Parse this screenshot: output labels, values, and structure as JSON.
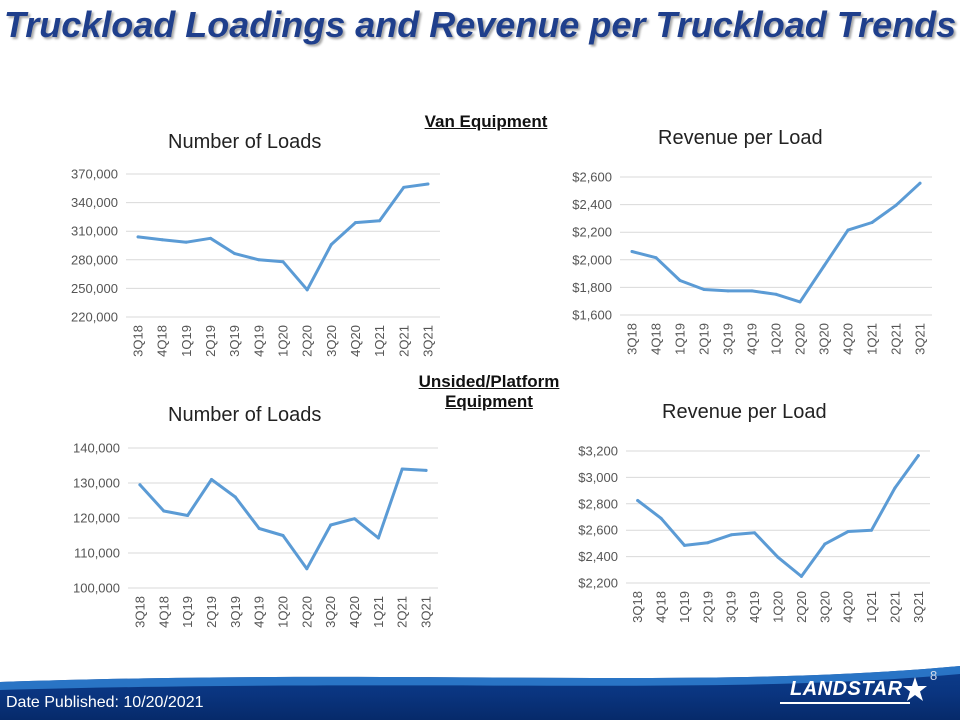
{
  "slide": {
    "title": "Truckload Loadings and Revenue per Truckload Trends",
    "section_van": "Van Equipment",
    "section_unsided": "Unsided/Platform Equipment",
    "footer_date": "Date Published:  10/20/2021",
    "logo": "LANDSTAR",
    "page_number": "8"
  },
  "colors": {
    "title": "#1f3f8c",
    "line": "#5b9bd5",
    "grid": "#d9d9d9",
    "footer": "#0a3580"
  },
  "chart_data": [
    {
      "type": "line",
      "title": "Number of Loads",
      "categories": [
        "3Q18",
        "4Q18",
        "1Q19",
        "2Q19",
        "3Q19",
        "4Q19",
        "1Q20",
        "2Q20",
        "3Q20",
        "4Q20",
        "1Q21",
        "2Q21",
        "3Q21"
      ],
      "values": [
        304000,
        301000,
        298500,
        302500,
        286500,
        280000,
        278000,
        248500,
        296000,
        319000,
        321000,
        356000,
        359500
      ],
      "ylim": [
        220000,
        370000
      ],
      "yticks": [
        "220,000",
        "250,000",
        "280,000",
        "310,000",
        "340,000",
        "370,000"
      ],
      "grid": true
    },
    {
      "type": "line",
      "title": "Revenue per Load",
      "categories": [
        "3Q18",
        "4Q18",
        "1Q19",
        "2Q19",
        "3Q19",
        "4Q19",
        "1Q20",
        "2Q20",
        "3Q20",
        "4Q20",
        "1Q21",
        "2Q21",
        "3Q21"
      ],
      "values": [
        2060,
        2015,
        1850,
        1785,
        1775,
        1775,
        1750,
        1695,
        1955,
        2215,
        2270,
        2395,
        2555
      ],
      "ylim": [
        1600,
        2600
      ],
      "yticks": [
        "$1,600",
        "$1,800",
        "$2,000",
        "$2,200",
        "$2,400",
        "$2,600"
      ],
      "grid": true
    },
    {
      "type": "line",
      "title": "Number of Loads",
      "categories": [
        "3Q18",
        "4Q18",
        "1Q19",
        "2Q19",
        "3Q19",
        "4Q19",
        "1Q20",
        "2Q20",
        "3Q20",
        "4Q20",
        "1Q21",
        "2Q21",
        "3Q21"
      ],
      "values": [
        129500,
        122000,
        120700,
        131000,
        126000,
        117000,
        115000,
        105500,
        118000,
        119800,
        114300,
        134000,
        133600
      ],
      "ylim": [
        100000,
        140000
      ],
      "yticks": [
        "100,000",
        "110,000",
        "120,000",
        "130,000",
        "140,000"
      ],
      "grid": true
    },
    {
      "type": "line",
      "title": "Revenue per Load",
      "categories": [
        "3Q18",
        "4Q18",
        "1Q19",
        "2Q19",
        "3Q19",
        "4Q19",
        "1Q20",
        "2Q20",
        "3Q20",
        "4Q20",
        "1Q21",
        "2Q21",
        "3Q21"
      ],
      "values": [
        2825,
        2690,
        2485,
        2505,
        2565,
        2580,
        2395,
        2250,
        2495,
        2590,
        2600,
        2920,
        3165
      ],
      "ylim": [
        2200,
        3200
      ],
      "yticks": [
        "$2,200",
        "$2,400",
        "$2,600",
        "$2,800",
        "$3,000",
        "$3,200"
      ],
      "grid": true
    }
  ]
}
